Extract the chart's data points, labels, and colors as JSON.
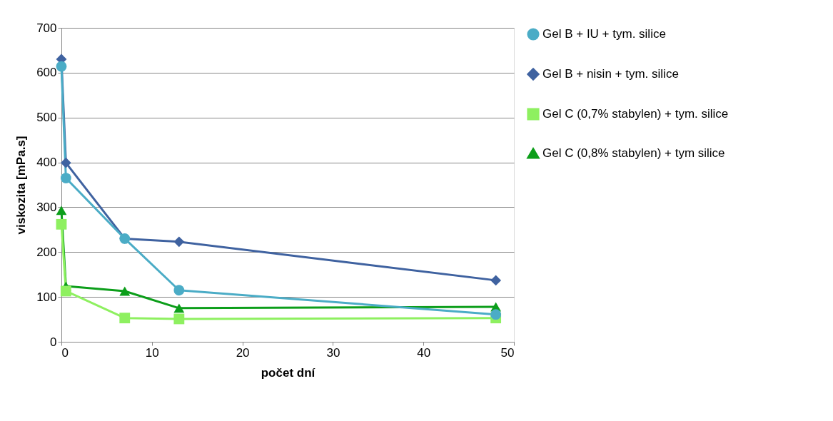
{
  "chart_data": {
    "type": "line",
    "xlabel": "počet dní",
    "ylabel": "viskozita [mPa.s]",
    "xlim": [
      0,
      50
    ],
    "xticks": [
      0,
      10,
      20,
      30,
      40,
      50
    ],
    "ylim": [
      0,
      700
    ],
    "yticks": [
      0,
      100,
      200,
      300,
      400,
      500,
      600,
      700
    ],
    "grid": "y",
    "legend": "right",
    "series": [
      {
        "name": "Gel B + IU + tym. silice",
        "color": "#4bacc6",
        "marker": "circle",
        "x": [
          0,
          0.5,
          7,
          13,
          48
        ],
        "values": [
          614,
          365,
          230,
          115,
          61
        ]
      },
      {
        "name": "Gel B + nisin + tym. silice",
        "color": "#3f62a0",
        "marker": "diamond",
        "x": [
          0,
          0.5,
          7,
          13,
          48
        ],
        "values": [
          630,
          399,
          230,
          223,
          137
        ]
      },
      {
        "name": "Gel C (0,7% stabylen) + tym. silice",
        "color": "#8ef060",
        "marker": "square",
        "x": [
          0,
          0.5,
          7,
          13,
          48
        ],
        "values": [
          262,
          113,
          53,
          51,
          53
        ]
      },
      {
        "name": "Gel C (0,8% stabylen) + tym silice",
        "color": "#0c9e1a",
        "marker": "triangle",
        "x": [
          0,
          0.5,
          7,
          13,
          48
        ],
        "values": [
          293,
          124,
          113,
          75,
          78
        ]
      }
    ]
  }
}
